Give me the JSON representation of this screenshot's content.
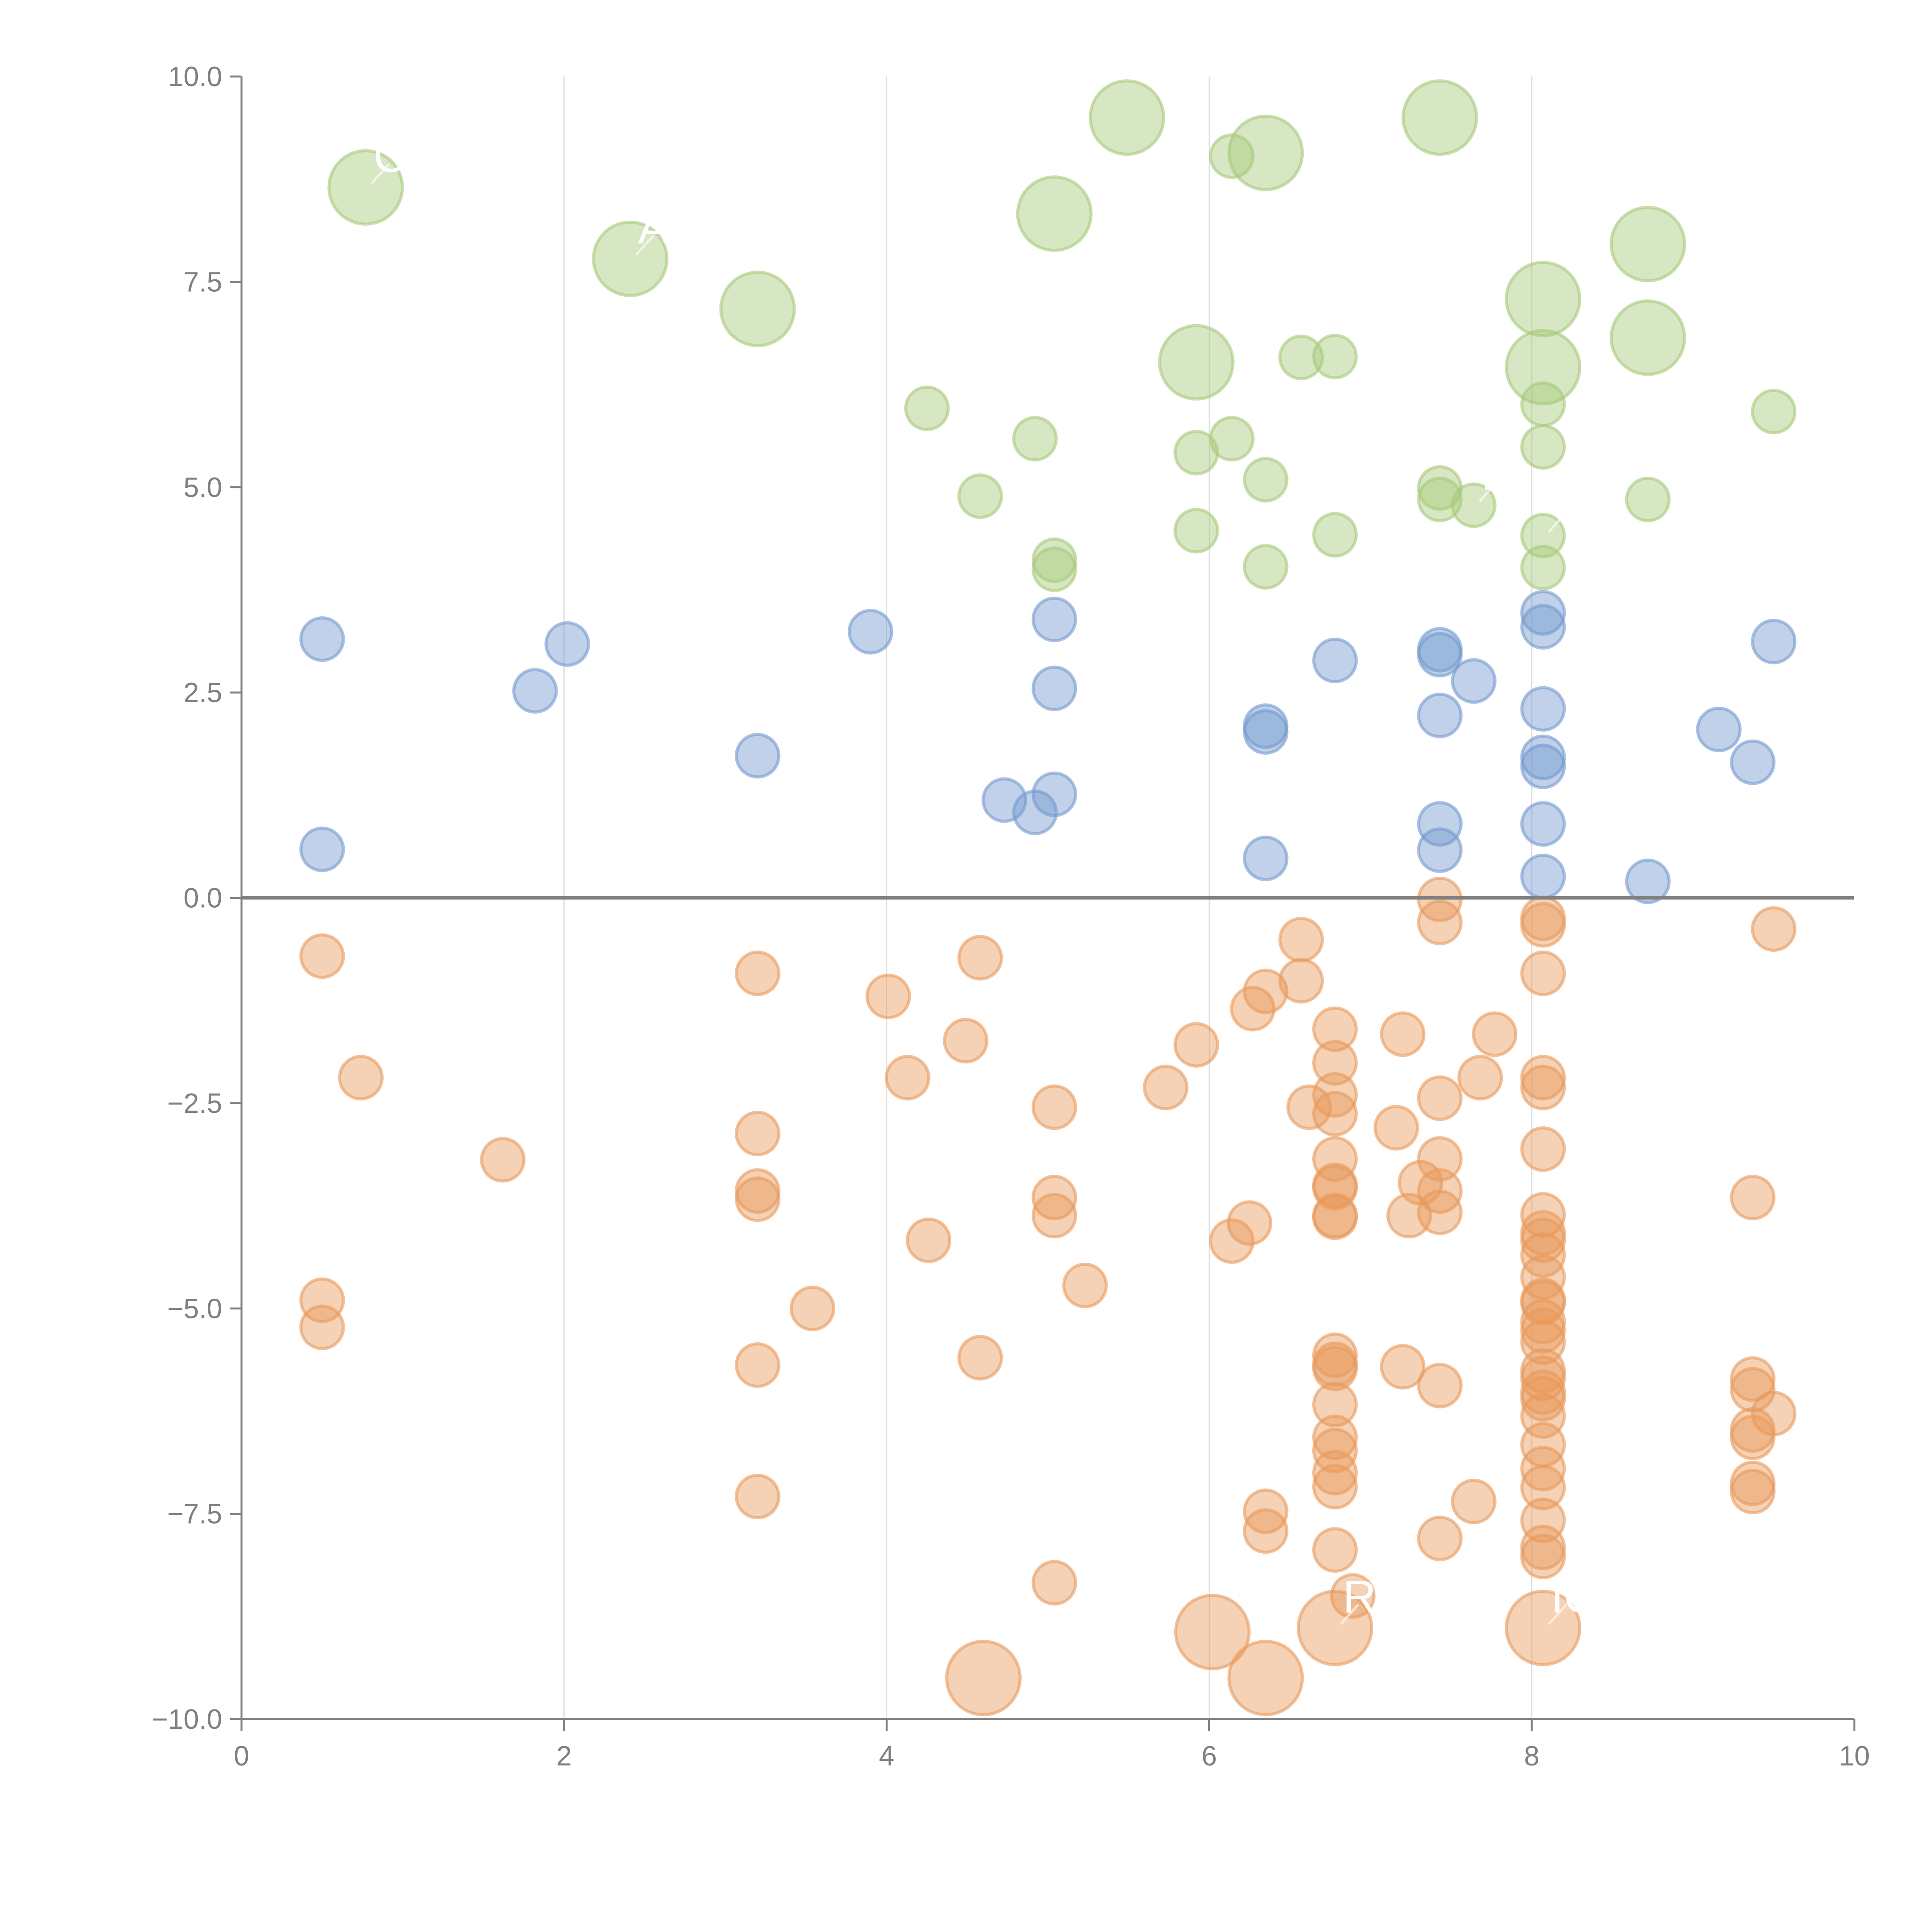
{
  "chart_data": {
    "type": "scatter",
    "title": "",
    "xlabel": "",
    "ylabel": "",
    "xlim": [
      0,
      10
    ],
    "ylim": [
      -10,
      10
    ],
    "grid": "vertical lines at x ticks",
    "x_ticks": [
      "0",
      "2",
      "4",
      "6",
      "8",
      "10"
    ],
    "x_tick_values": [
      0,
      2,
      4,
      6,
      8,
      10
    ],
    "y_ticks": [
      "10.0",
      "7.5",
      "5.0",
      "2.5",
      "0.0",
      "−2.5",
      "−5.0",
      "−7.5",
      "−10.0"
    ],
    "y_tick_values": [
      10,
      7.5,
      5,
      2.5,
      0,
      -2.5,
      -5,
      -7.5,
      -10
    ],
    "colors": {
      "green": "#a6c97a",
      "blue": "#7399cf",
      "orange": "#e89a5c",
      "axis": "#808080"
    },
    "series": [
      {
        "name": "green",
        "points": [
          {
            "x": 0.77,
            "y": 8.65,
            "size": "large",
            "label": "C"
          },
          {
            "x": 2.41,
            "y": 7.78,
            "size": "large",
            "label": "A"
          },
          {
            "x": 3.2,
            "y": 7.17,
            "size": "large",
            "label": ""
          },
          {
            "x": 5.04,
            "y": 8.33,
            "size": "large",
            "label": ""
          },
          {
            "x": 5.49,
            "y": 9.5,
            "size": "large",
            "label": ""
          },
          {
            "x": 6.14,
            "y": 9.03,
            "size": "small",
            "label": ""
          },
          {
            "x": 6.35,
            "y": 9.07,
            "size": "large",
            "label": ""
          },
          {
            "x": 7.43,
            "y": 9.5,
            "size": "large",
            "label": ""
          },
          {
            "x": 8.72,
            "y": 7.96,
            "size": "large",
            "label": ""
          },
          {
            "x": 8.07,
            "y": 7.29,
            "size": "large",
            "label": ""
          },
          {
            "x": 8.72,
            "y": 6.82,
            "size": "large",
            "label": ""
          },
          {
            "x": 8.07,
            "y": 6.46,
            "size": "large",
            "label": ""
          },
          {
            "x": 5.92,
            "y": 6.52,
            "size": "large",
            "label": ""
          },
          {
            "x": 6.57,
            "y": 6.58,
            "size": "small",
            "label": ""
          },
          {
            "x": 6.78,
            "y": 6.59,
            "size": "small",
            "label": ""
          },
          {
            "x": 4.25,
            "y": 5.96,
            "size": "small",
            "label": ""
          },
          {
            "x": 8.07,
            "y": 6.01,
            "size": "small",
            "label": ""
          },
          {
            "x": 9.5,
            "y": 5.92,
            "size": "small",
            "label": ""
          },
          {
            "x": 4.92,
            "y": 5.59,
            "size": "small",
            "label": ""
          },
          {
            "x": 6.14,
            "y": 5.59,
            "size": "small",
            "label": ""
          },
          {
            "x": 5.92,
            "y": 5.42,
            "size": "small",
            "label": ""
          },
          {
            "x": 8.07,
            "y": 5.49,
            "size": "small",
            "label": ""
          },
          {
            "x": 6.35,
            "y": 5.09,
            "size": "small",
            "label": ""
          },
          {
            "x": 7.43,
            "y": 4.99,
            "size": "small",
            "label": ""
          },
          {
            "x": 4.58,
            "y": 4.89,
            "size": "small",
            "label": ""
          },
          {
            "x": 7.43,
            "y": 4.85,
            "size": "small",
            "label": ""
          },
          {
            "x": 7.64,
            "y": 4.78,
            "size": "small",
            "label": "P"
          },
          {
            "x": 8.72,
            "y": 4.85,
            "size": "small",
            "label": ""
          },
          {
            "x": 5.92,
            "y": 4.47,
            "size": "small",
            "label": ""
          },
          {
            "x": 6.78,
            "y": 4.42,
            "size": "small",
            "label": ""
          },
          {
            "x": 8.07,
            "y": 4.41,
            "size": "small",
            "label": "V"
          },
          {
            "x": 5.04,
            "y": 4.11,
            "size": "small",
            "label": ""
          },
          {
            "x": 5.04,
            "y": 4.0,
            "size": "small",
            "label": ""
          },
          {
            "x": 6.35,
            "y": 4.03,
            "size": "small",
            "label": ""
          },
          {
            "x": 8.07,
            "y": 4.02,
            "size": "small",
            "label": ""
          }
        ]
      },
      {
        "name": "blue",
        "points": [
          {
            "x": 0.5,
            "y": 3.15
          },
          {
            "x": 2.02,
            "y": 3.09
          },
          {
            "x": 1.82,
            "y": 2.52
          },
          {
            "x": 3.9,
            "y": 3.24
          },
          {
            "x": 3.2,
            "y": 1.73
          },
          {
            "x": 0.5,
            "y": 0.59
          },
          {
            "x": 5.04,
            "y": 3.39
          },
          {
            "x": 5.04,
            "y": 2.55
          },
          {
            "x": 4.73,
            "y": 1.19
          },
          {
            "x": 4.92,
            "y": 1.04
          },
          {
            "x": 5.04,
            "y": 1.26
          },
          {
            "x": 6.35,
            "y": 2.09
          },
          {
            "x": 6.35,
            "y": 2.02
          },
          {
            "x": 6.35,
            "y": 0.48
          },
          {
            "x": 6.78,
            "y": 2.89
          },
          {
            "x": 7.43,
            "y": 3.02
          },
          {
            "x": 7.43,
            "y": 2.96
          },
          {
            "x": 7.64,
            "y": 2.64
          },
          {
            "x": 7.43,
            "y": 2.22
          },
          {
            "x": 7.43,
            "y": 0.9
          },
          {
            "x": 7.43,
            "y": 0.58
          },
          {
            "x": 8.07,
            "y": 3.47
          },
          {
            "x": 8.07,
            "y": 3.3
          },
          {
            "x": 8.07,
            "y": 2.3
          },
          {
            "x": 8.07,
            "y": 1.71
          },
          {
            "x": 8.07,
            "y": 1.6
          },
          {
            "x": 8.07,
            "y": 0.9
          },
          {
            "x": 8.07,
            "y": 0.26
          },
          {
            "x": 8.72,
            "y": 0.2
          },
          {
            "x": 9.16,
            "y": 2.05
          },
          {
            "x": 9.37,
            "y": 1.65
          },
          {
            "x": 9.5,
            "y": 3.12
          }
        ]
      },
      {
        "name": "orange",
        "points": [
          {
            "x": 0.5,
            "y": -0.71
          },
          {
            "x": 0.74,
            "y": -2.19
          },
          {
            "x": 1.62,
            "y": -3.19
          },
          {
            "x": 0.5,
            "y": -4.9
          },
          {
            "x": 0.5,
            "y": -5.23
          },
          {
            "x": 3.2,
            "y": -0.92
          },
          {
            "x": 3.2,
            "y": -2.87
          },
          {
            "x": 3.2,
            "y": -3.57
          },
          {
            "x": 3.2,
            "y": -3.67
          },
          {
            "x": 3.54,
            "y": -5.0
          },
          {
            "x": 3.2,
            "y": -5.69
          },
          {
            "x": 3.2,
            "y": -7.29
          },
          {
            "x": 4.01,
            "y": -1.2
          },
          {
            "x": 4.13,
            "y": -2.19
          },
          {
            "x": 4.58,
            "y": -0.73
          },
          {
            "x": 4.49,
            "y": -1.74
          },
          {
            "x": 4.26,
            "y": -4.17
          },
          {
            "x": 4.58,
            "y": -5.6
          },
          {
            "x": 5.04,
            "y": -2.55
          },
          {
            "x": 5.04,
            "y": -3.65
          },
          {
            "x": 5.04,
            "y": -3.87
          },
          {
            "x": 5.23,
            "y": -4.72
          },
          {
            "x": 5.04,
            "y": -8.34
          },
          {
            "x": 5.73,
            "y": -2.31
          },
          {
            "x": 5.92,
            "y": -1.79
          },
          {
            "x": 6.14,
            "y": -4.18
          },
          {
            "x": 6.25,
            "y": -3.96
          },
          {
            "x": 6.27,
            "y": -1.35
          },
          {
            "x": 6.35,
            "y": -1.14
          },
          {
            "x": 6.57,
            "y": -0.51
          },
          {
            "x": 6.57,
            "y": -1.01
          },
          {
            "x": 6.62,
            "y": -2.55
          },
          {
            "x": 6.35,
            "y": -7.47
          },
          {
            "x": 6.35,
            "y": -7.71
          },
          {
            "x": 6.78,
            "y": -1.6
          },
          {
            "x": 6.78,
            "y": -2.01
          },
          {
            "x": 6.78,
            "y": -2.4
          },
          {
            "x": 6.78,
            "y": -2.63
          },
          {
            "x": 6.78,
            "y": -3.18
          },
          {
            "x": 6.78,
            "y": -3.5
          },
          {
            "x": 6.78,
            "y": -3.53
          },
          {
            "x": 6.78,
            "y": -3.87
          },
          {
            "x": 6.78,
            "y": -3.89
          },
          {
            "x": 6.78,
            "y": -5.57
          },
          {
            "x": 6.78,
            "y": -5.68
          },
          {
            "x": 6.78,
            "y": -5.73
          },
          {
            "x": 6.78,
            "y": -6.17
          },
          {
            "x": 6.78,
            "y": -6.57
          },
          {
            "x": 6.78,
            "y": -6.73
          },
          {
            "x": 6.78,
            "y": -7.0
          },
          {
            "x": 6.78,
            "y": -7.17
          },
          {
            "x": 6.78,
            "y": -7.94
          },
          {
            "x": 6.89,
            "y": -8.5
          },
          {
            "x": 7.16,
            "y": -2.8
          },
          {
            "x": 7.2,
            "y": -1.66
          },
          {
            "x": 7.24,
            "y": -3.87
          },
          {
            "x": 7.31,
            "y": -3.47
          },
          {
            "x": 7.2,
            "y": -5.71
          },
          {
            "x": 7.43,
            "y": -0.02
          },
          {
            "x": 7.43,
            "y": -0.3
          },
          {
            "x": 7.43,
            "y": -2.44
          },
          {
            "x": 7.43,
            "y": -3.18
          },
          {
            "x": 7.43,
            "y": -3.57
          },
          {
            "x": 7.43,
            "y": -3.83
          },
          {
            "x": 7.43,
            "y": -5.94
          },
          {
            "x": 7.43,
            "y": -7.8
          },
          {
            "x": 7.68,
            "y": -2.19
          },
          {
            "x": 7.77,
            "y": -1.66
          },
          {
            "x": 7.64,
            "y": -7.35
          },
          {
            "x": 8.07,
            "y": -0.25
          },
          {
            "x": 8.07,
            "y": -0.33
          },
          {
            "x": 8.07,
            "y": -0.92
          },
          {
            "x": 8.07,
            "y": -2.19
          },
          {
            "x": 8.07,
            "y": -2.31
          },
          {
            "x": 8.07,
            "y": -3.06
          },
          {
            "x": 8.07,
            "y": -3.86
          },
          {
            "x": 8.07,
            "y": -4.08
          },
          {
            "x": 8.07,
            "y": -4.17
          },
          {
            "x": 8.07,
            "y": -4.35
          },
          {
            "x": 8.07,
            "y": -4.62
          },
          {
            "x": 8.07,
            "y": -4.9
          },
          {
            "x": 8.07,
            "y": -4.93
          },
          {
            "x": 8.07,
            "y": -5.16
          },
          {
            "x": 8.07,
            "y": -5.27
          },
          {
            "x": 8.07,
            "y": -5.41
          },
          {
            "x": 8.07,
            "y": -5.76
          },
          {
            "x": 8.07,
            "y": -5.85
          },
          {
            "x": 8.07,
            "y": -6.02
          },
          {
            "x": 8.07,
            "y": -6.1
          },
          {
            "x": 8.07,
            "y": -6.31
          },
          {
            "x": 8.07,
            "y": -6.66
          },
          {
            "x": 8.07,
            "y": -6.95
          },
          {
            "x": 8.07,
            "y": -7.18
          },
          {
            "x": 8.07,
            "y": -7.58
          },
          {
            "x": 8.07,
            "y": -7.91
          },
          {
            "x": 8.07,
            "y": -8.02
          },
          {
            "x": 9.37,
            "y": -3.65
          },
          {
            "x": 9.37,
            "y": -5.86
          },
          {
            "x": 9.37,
            "y": -5.99
          },
          {
            "x": 9.37,
            "y": -6.48
          },
          {
            "x": 9.37,
            "y": -6.57
          },
          {
            "x": 9.37,
            "y": -7.13
          },
          {
            "x": 9.37,
            "y": -7.23
          },
          {
            "x": 9.5,
            "y": -0.38
          },
          {
            "x": 9.5,
            "y": -6.28
          }
        ],
        "large_points": [
          {
            "x": 4.6,
            "y": -9.5,
            "label": ""
          },
          {
            "x": 6.02,
            "y": -8.94,
            "label": ""
          },
          {
            "x": 6.35,
            "y": -9.5,
            "label": ""
          },
          {
            "x": 6.78,
            "y": -8.89,
            "label": "R"
          },
          {
            "x": 8.07,
            "y": -8.89,
            "label": "IC"
          }
        ]
      }
    ],
    "annotations": [
      "C",
      "A",
      "P",
      "V",
      "R",
      "IC"
    ]
  }
}
